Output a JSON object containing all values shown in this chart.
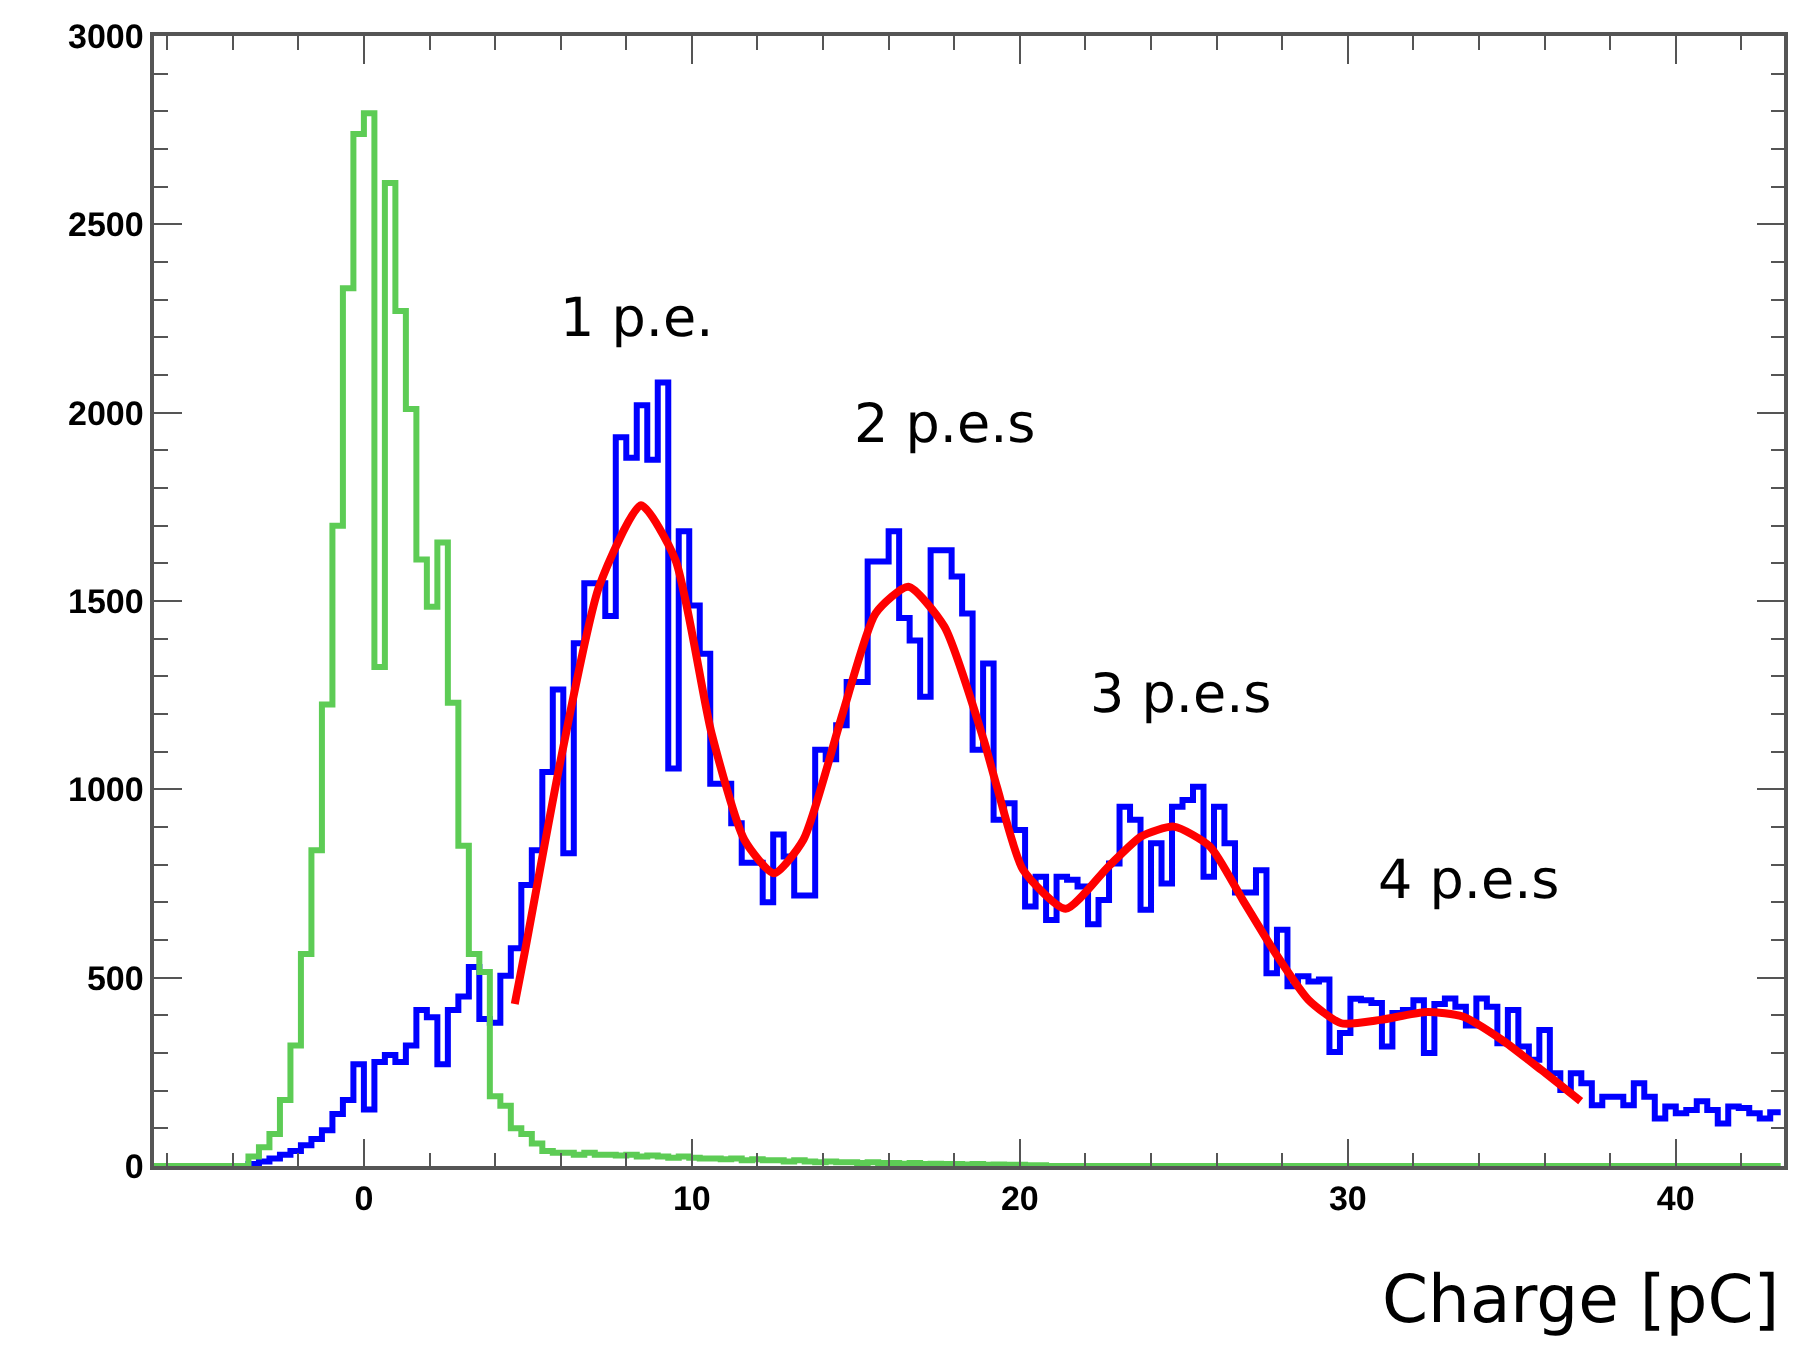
{
  "chart_data": {
    "type": "histogram",
    "xlabel": "Charge [pC]",
    "bins": [
      -6.4,
      -6.08,
      -5.76,
      -5.44,
      -5.12,
      -4.8,
      -4.48,
      -4.16,
      -3.84,
      -3.52,
      -3.2,
      -2.88,
      -2.56,
      -2.24,
      -1.92,
      -1.6,
      -1.28,
      -0.96,
      -0.64,
      -0.32,
      0,
      0.32,
      0.64,
      0.96,
      1.28,
      1.6,
      1.92,
      2.24,
      2.56,
      2.88,
      3.2,
      3.52,
      3.84,
      4.16,
      4.48,
      4.8,
      5.12,
      5.44,
      5.76,
      6.08,
      6.4,
      6.72,
      7.04,
      7.36,
      7.68,
      8,
      8.32,
      8.64,
      8.96,
      9.28,
      9.6,
      9.92,
      10.24,
      10.56,
      10.88,
      11.2,
      11.52,
      11.84,
      12.16,
      12.48,
      12.8,
      13.12,
      13.44,
      13.76,
      14.08,
      14.4,
      14.72,
      15.04,
      15.36,
      15.68,
      16,
      16.32,
      16.64,
      16.96,
      17.28,
      17.6,
      17.92,
      18.24,
      18.56,
      18.88,
      19.2,
      19.52,
      19.84,
      20.16,
      20.48,
      20.8,
      21.12,
      21.44,
      21.76,
      22.08,
      22.4,
      22.72,
      23.04,
      23.36,
      23.68,
      24,
      24.32,
      24.64,
      24.96,
      25.28,
      25.6,
      25.92,
      26.24,
      26.56,
      26.88,
      27.2,
      27.52,
      27.84,
      28.16,
      28.48,
      28.8,
      29.12,
      29.44,
      29.76,
      30.08,
      30.4,
      30.72,
      31.04,
      31.36,
      31.68,
      32,
      32.32,
      32.64,
      32.96,
      33.28,
      33.6,
      33.92,
      34.24,
      34.56,
      34.88,
      35.2,
      35.52,
      35.84,
      36.16,
      36.48,
      36.8,
      37.12,
      37.44,
      37.76,
      38.08,
      38.4,
      38.72,
      39.04,
      39.36,
      39.68,
      40,
      40.32,
      40.64,
      40.96,
      41.28,
      41.6,
      41.92,
      42.24,
      42.56,
      42.88,
      43.2
    ],
    "series": [
      {
        "color": "#0000ff",
        "values": [
          0,
          0,
          0,
          0,
          0,
          0,
          0,
          0,
          0,
          5,
          12,
          20,
          30,
          40,
          55,
          72,
          95,
          138,
          175,
          270,
          150,
          276,
          295,
          276,
          320,
          414,
          395,
          270,
          414,
          450,
          528,
          390,
          380,
          505,
          578,
          746,
          838,
          1046,
          1265,
          830,
          1388,
          1547,
          1547,
          1460,
          1935,
          1880,
          2020,
          1875,
          2080,
          1055,
          1685,
          1488,
          1360,
          1015,
          1015,
          910,
          805,
          805,
          700,
          880,
          822,
          718,
          718,
          1105,
          1080,
          1170,
          1285,
          1285,
          1605,
          1605,
          1685,
          1455,
          1395,
          1246,
          1635,
          1635,
          1565,
          1467,
          1105,
          1334,
          919,
          963,
          892,
          689,
          768,
          653,
          768,
          760,
          742,
          642,
          706,
          803,
          954,
          919,
          680,
          857,
          750,
          954,
          972,
          1007,
          768,
          954,
          857,
          726,
          726,
          785,
          512,
          627,
          477,
          504,
          490,
          495,
          303,
          353,
          444,
          440,
          433,
          317,
          406,
          414,
          440,
          300,
          430,
          445,
          423,
          373,
          445,
          423,
          326,
          414,
          317,
          282,
          361,
          246,
          202,
          246,
          220,
          161,
          184,
          184,
          161,
          220,
          184,
          126,
          158,
          140,
          149,
          172,
          149,
          113,
          158,
          154,
          140,
          126,
          143
        ]
      },
      {
        "color": "#5dcc55",
        "values": [
          0,
          0,
          0,
          0,
          0,
          0,
          0,
          0,
          0,
          25,
          50,
          85,
          175,
          320,
          563,
          838,
          1225,
          1700,
          2330,
          2740,
          2795,
          1325,
          2610,
          2270,
          2010,
          1610,
          1485,
          1655,
          1230,
          850,
          563,
          515,
          185,
          160,
          100,
          85,
          60,
          40,
          35,
          35,
          30,
          35,
          30,
          30,
          28,
          30,
          25,
          28,
          25,
          22,
          25,
          22,
          20,
          20,
          18,
          20,
          15,
          18,
          15,
          15,
          12,
          15,
          12,
          10,
          12,
          10,
          10,
          8,
          10,
          8,
          8,
          6,
          8,
          5,
          6,
          5,
          5,
          4,
          5,
          3,
          4,
          3,
          3,
          2,
          2,
          0,
          0,
          0,
          0,
          0,
          0,
          0,
          0,
          0,
          0,
          0,
          0,
          0,
          0,
          0,
          0,
          0,
          0,
          0,
          0,
          0,
          0,
          0,
          0,
          0,
          0,
          0,
          0,
          0,
          0,
          0,
          0,
          0,
          0,
          0,
          0,
          0,
          0,
          0,
          0,
          0,
          0,
          0,
          0,
          0,
          0,
          0,
          0,
          0,
          0,
          0,
          0,
          0,
          0,
          0,
          0,
          0,
          0,
          0,
          0,
          0,
          0,
          0,
          0,
          0,
          0,
          0,
          0,
          0,
          0
        ]
      },
      {
        "type": "line",
        "color": "#ff0000",
        "x": [
          4.6,
          4.88,
          6.0,
          7.17,
          8.45,
          9.5,
          10.6,
          11.6,
          12.5,
          13.4,
          14.6,
          15.6,
          16.6,
          17.7,
          18.9,
          19.3,
          20.1,
          21.4,
          22.7,
          23.7,
          24.7,
          25.8,
          26.8,
          27.8,
          28.8,
          29.8,
          31.0,
          32.4,
          33.5,
          34.7,
          35.9,
          37.1
        ],
        "values": [
          430,
          556,
          1078,
          1538,
          1754,
          1609,
          1149,
          866,
          777,
          866,
          1202,
          1467,
          1538,
          1432,
          1131,
          1007,
          786,
          683,
          795,
          875,
          901,
          848,
          706,
          564,
          441,
          379,
          388,
          409,
          397,
          335,
          255,
          172
        ]
      }
    ],
    "annotations": [
      "1 p.e.",
      "2 p.e.s",
      "3 p.e.s",
      "4 p.e.s"
    ],
    "xlim": [
      -6.4,
      43.3
    ],
    "xticks": [
      0,
      10,
      20,
      30,
      40
    ],
    "ylim": [
      0,
      3000
    ],
    "yticks": [
      0,
      500,
      1000,
      1500,
      2000,
      2500,
      3000
    ],
    "marker": "none",
    "line_style": "solid"
  }
}
